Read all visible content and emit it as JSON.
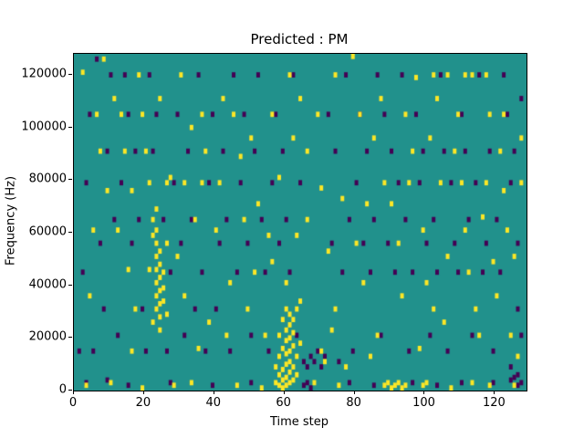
{
  "title": "Predicted : PM",
  "chart_data": {
    "type": "heatmap",
    "title": "Predicted : PM",
    "xlabel": "Time step",
    "ylabel": "Frequency (Hz)",
    "xlim": [
      0,
      129
    ],
    "ylim": [
      0,
      128000
    ],
    "x_ticks": [
      0,
      20,
      40,
      60,
      80,
      100,
      120
    ],
    "y_ticks": [
      0,
      20000,
      40000,
      60000,
      80000,
      100000,
      120000
    ],
    "grid": false,
    "legend": "none",
    "n_time_steps": 129,
    "n_freq_bins": 128,
    "freq_bin_hz": 1000,
    "colors": {
      "background": "#21918c",
      "high": "#fde725",
      "low": "#440154"
    },
    "yellow_cells": [
      [
        57,
        2
      ],
      [
        57,
        8
      ],
      [
        58,
        1
      ],
      [
        58,
        5
      ],
      [
        58,
        12
      ],
      [
        59,
        0
      ],
      [
        59,
        3
      ],
      [
        59,
        7
      ],
      [
        59,
        15
      ],
      [
        59,
        26
      ],
      [
        60,
        1
      ],
      [
        60,
        4
      ],
      [
        60,
        9
      ],
      [
        60,
        13
      ],
      [
        60,
        18
      ],
      [
        60,
        22
      ],
      [
        60,
        30
      ],
      [
        61,
        2
      ],
      [
        61,
        6
      ],
      [
        61,
        10
      ],
      [
        61,
        14
      ],
      [
        61,
        19
      ],
      [
        61,
        24
      ],
      [
        61,
        28
      ],
      [
        62,
        3
      ],
      [
        62,
        8
      ],
      [
        62,
        16
      ],
      [
        62,
        21
      ],
      [
        62,
        26
      ],
      [
        63,
        5
      ],
      [
        63,
        12
      ],
      [
        63,
        30
      ],
      [
        64,
        17
      ],
      [
        64,
        33
      ],
      [
        58,
        20
      ],
      [
        22,
        64
      ],
      [
        22,
        58
      ],
      [
        22,
        25
      ],
      [
        23,
        68
      ],
      [
        23,
        60
      ],
      [
        23,
        55
      ],
      [
        23,
        50
      ],
      [
        23,
        45
      ],
      [
        23,
        40
      ],
      [
        23,
        35
      ],
      [
        23,
        30
      ],
      [
        24,
        52
      ],
      [
        24,
        47
      ],
      [
        24,
        42
      ],
      [
        24,
        37
      ],
      [
        24,
        32
      ],
      [
        24,
        27
      ],
      [
        24,
        22
      ],
      [
        25,
        44
      ],
      [
        25,
        38
      ],
      [
        25,
        33
      ],
      [
        26,
        28
      ],
      [
        3,
        1
      ],
      [
        10,
        2
      ],
      [
        19,
        0
      ],
      [
        28,
        1
      ],
      [
        33,
        2
      ],
      [
        46,
        1
      ],
      [
        53,
        0
      ],
      [
        68,
        2
      ],
      [
        75,
        1
      ],
      [
        88,
        1
      ],
      [
        89,
        2
      ],
      [
        90,
        0
      ],
      [
        91,
        1
      ],
      [
        92,
        2
      ],
      [
        93,
        0
      ],
      [
        94,
        1
      ],
      [
        99,
        1
      ],
      [
        100,
        2
      ],
      [
        107,
        0
      ],
      [
        113,
        2
      ],
      [
        118,
        1
      ],
      [
        125,
        1
      ],
      [
        2,
        120
      ],
      [
        6,
        104
      ],
      [
        13,
        104
      ],
      [
        14,
        90
      ],
      [
        18,
        119
      ],
      [
        19,
        104
      ],
      [
        21,
        78
      ],
      [
        26,
        78
      ],
      [
        27,
        80
      ],
      [
        30,
        119
      ],
      [
        33,
        99
      ],
      [
        36,
        78
      ],
      [
        40,
        60
      ],
      [
        45,
        104
      ],
      [
        47,
        88
      ],
      [
        52,
        70
      ],
      [
        55,
        58
      ],
      [
        56,
        48
      ],
      [
        60,
        40
      ],
      [
        63,
        58
      ],
      [
        66,
        64
      ],
      [
        70,
        76
      ],
      [
        72,
        52
      ],
      [
        74,
        30
      ],
      [
        76,
        72
      ],
      [
        79,
        126
      ],
      [
        82,
        40
      ],
      [
        84,
        12
      ],
      [
        86,
        20
      ],
      [
        88,
        78
      ],
      [
        90,
        70
      ],
      [
        92,
        55
      ],
      [
        95,
        78
      ],
      [
        96,
        90
      ],
      [
        97,
        118
      ],
      [
        99,
        60
      ],
      [
        100,
        40
      ],
      [
        102,
        30
      ],
      [
        104,
        78
      ],
      [
        106,
        50
      ],
      [
        108,
        90
      ],
      [
        109,
        104
      ],
      [
        110,
        78
      ],
      [
        111,
        60
      ],
      [
        112,
        44
      ],
      [
        114,
        30
      ],
      [
        115,
        20
      ],
      [
        117,
        78
      ],
      [
        119,
        48
      ],
      [
        121,
        90
      ],
      [
        123,
        60
      ],
      [
        124,
        20
      ],
      [
        126,
        12
      ],
      [
        118,
        104
      ],
      [
        113,
        119
      ],
      [
        106,
        119
      ],
      [
        54,
        20
      ],
      [
        49,
        30
      ],
      [
        44,
        40
      ],
      [
        38,
        25
      ],
      [
        35,
        15
      ],
      [
        31,
        35
      ],
      [
        29,
        50
      ],
      [
        17,
        30
      ],
      [
        15,
        45
      ],
      [
        12,
        60
      ],
      [
        9,
        75
      ],
      [
        7,
        90
      ],
      [
        5,
        60
      ],
      [
        4,
        35
      ],
      [
        70,
        14
      ],
      [
        71,
        10
      ],
      [
        73,
        22
      ],
      [
        77,
        8
      ],
      [
        80,
        55
      ],
      [
        83,
        70
      ],
      [
        85,
        95
      ],
      [
        87,
        110
      ],
      [
        93,
        35
      ],
      [
        98,
        15
      ],
      [
        101,
        95
      ],
      [
        103,
        110
      ],
      [
        105,
        25
      ],
      [
        116,
        65
      ],
      [
        120,
        35
      ],
      [
        122,
        75
      ],
      [
        125,
        50
      ],
      [
        127,
        95
      ],
      [
        66,
        90
      ],
      [
        64,
        110
      ],
      [
        62,
        95
      ],
      [
        58,
        80
      ],
      [
        50,
        95
      ],
      [
        42,
        110
      ],
      [
        37,
        90
      ],
      [
        24,
        110
      ],
      [
        20,
        90
      ],
      [
        16,
        75
      ],
      [
        11,
        110
      ],
      [
        8,
        125
      ],
      [
        34,
        64
      ],
      [
        41,
        78
      ],
      [
        48,
        64
      ],
      [
        51,
        44
      ],
      [
        16,
        14
      ],
      [
        21,
        45
      ],
      [
        26,
        55
      ],
      [
        31,
        78
      ],
      [
        36,
        104
      ],
      [
        43,
        20
      ],
      [
        56,
        104
      ],
      [
        61,
        119
      ],
      [
        69,
        104
      ],
      [
        74,
        119
      ],
      [
        81,
        104
      ],
      [
        94,
        104
      ],
      [
        102,
        119
      ],
      [
        111,
        119
      ],
      [
        117,
        119
      ],
      [
        122,
        104
      ],
      [
        127,
        78
      ]
    ],
    "purple_cells": [
      [
        1,
        14
      ],
      [
        2,
        44
      ],
      [
        3,
        78
      ],
      [
        4,
        104
      ],
      [
        5,
        14
      ],
      [
        6,
        125
      ],
      [
        7,
        55
      ],
      [
        8,
        30
      ],
      [
        9,
        90
      ],
      [
        10,
        119
      ],
      [
        11,
        64
      ],
      [
        12,
        20
      ],
      [
        13,
        78
      ],
      [
        14,
        119
      ],
      [
        15,
        104
      ],
      [
        16,
        55
      ],
      [
        17,
        90
      ],
      [
        18,
        64
      ],
      [
        19,
        30
      ],
      [
        20,
        14
      ],
      [
        21,
        119
      ],
      [
        22,
        90
      ],
      [
        23,
        104
      ],
      [
        25,
        64
      ],
      [
        26,
        14
      ],
      [
        27,
        44
      ],
      [
        28,
        78
      ],
      [
        29,
        104
      ],
      [
        30,
        55
      ],
      [
        31,
        20
      ],
      [
        32,
        90
      ],
      [
        33,
        64
      ],
      [
        34,
        30
      ],
      [
        35,
        119
      ],
      [
        36,
        44
      ],
      [
        37,
        14
      ],
      [
        38,
        78
      ],
      [
        39,
        104
      ],
      [
        40,
        30
      ],
      [
        41,
        55
      ],
      [
        42,
        90
      ],
      [
        43,
        64
      ],
      [
        44,
        14
      ],
      [
        45,
        119
      ],
      [
        46,
        44
      ],
      [
        47,
        78
      ],
      [
        48,
        104
      ],
      [
        49,
        55
      ],
      [
        50,
        20
      ],
      [
        51,
        90
      ],
      [
        52,
        119
      ],
      [
        53,
        64
      ],
      [
        54,
        44
      ],
      [
        55,
        14
      ],
      [
        56,
        78
      ],
      [
        57,
        104
      ],
      [
        58,
        55
      ],
      [
        59,
        90
      ],
      [
        60,
        64
      ],
      [
        61,
        44
      ],
      [
        62,
        119
      ],
      [
        63,
        20
      ],
      [
        64,
        78
      ],
      [
        65,
        10
      ],
      [
        66,
        8
      ],
      [
        67,
        12
      ],
      [
        68,
        10
      ],
      [
        69,
        14
      ],
      [
        70,
        8
      ],
      [
        71,
        12
      ],
      [
        72,
        104
      ],
      [
        73,
        55
      ],
      [
        74,
        90
      ],
      [
        75,
        10
      ],
      [
        76,
        44
      ],
      [
        77,
        119
      ],
      [
        78,
        64
      ],
      [
        79,
        14
      ],
      [
        80,
        78
      ],
      [
        81,
        104
      ],
      [
        82,
        55
      ],
      [
        83,
        90
      ],
      [
        84,
        44
      ],
      [
        85,
        64
      ],
      [
        86,
        119
      ],
      [
        87,
        20
      ],
      [
        88,
        104
      ],
      [
        89,
        55
      ],
      [
        90,
        90
      ],
      [
        91,
        44
      ],
      [
        92,
        78
      ],
      [
        93,
        119
      ],
      [
        94,
        64
      ],
      [
        95,
        14
      ],
      [
        96,
        44
      ],
      [
        97,
        104
      ],
      [
        98,
        78
      ],
      [
        99,
        90
      ],
      [
        100,
        55
      ],
      [
        101,
        20
      ],
      [
        102,
        64
      ],
      [
        103,
        44
      ],
      [
        104,
        119
      ],
      [
        105,
        90
      ],
      [
        106,
        14
      ],
      [
        107,
        78
      ],
      [
        108,
        55
      ],
      [
        109,
        44
      ],
      [
        110,
        104
      ],
      [
        111,
        90
      ],
      [
        112,
        64
      ],
      [
        113,
        20
      ],
      [
        114,
        78
      ],
      [
        115,
        119
      ],
      [
        116,
        44
      ],
      [
        117,
        55
      ],
      [
        118,
        90
      ],
      [
        119,
        14
      ],
      [
        120,
        64
      ],
      [
        121,
        44
      ],
      [
        122,
        119
      ],
      [
        123,
        104
      ],
      [
        124,
        78
      ],
      [
        125,
        90
      ],
      [
        126,
        55
      ],
      [
        127,
        20
      ],
      [
        3,
        2
      ],
      [
        9,
        3
      ],
      [
        15,
        1
      ],
      [
        27,
        2
      ],
      [
        39,
        1
      ],
      [
        50,
        2
      ],
      [
        65,
        1
      ],
      [
        66,
        2
      ],
      [
        67,
        0
      ],
      [
        78,
        2
      ],
      [
        85,
        1
      ],
      [
        96,
        2
      ],
      [
        103,
        1
      ],
      [
        110,
        2
      ],
      [
        119,
        2
      ],
      [
        126,
        1
      ],
      [
        124,
        3
      ],
      [
        125,
        4
      ],
      [
        126,
        5
      ],
      [
        127,
        2
      ],
      [
        124,
        8
      ],
      [
        126,
        30
      ],
      [
        127,
        110
      ]
    ]
  }
}
